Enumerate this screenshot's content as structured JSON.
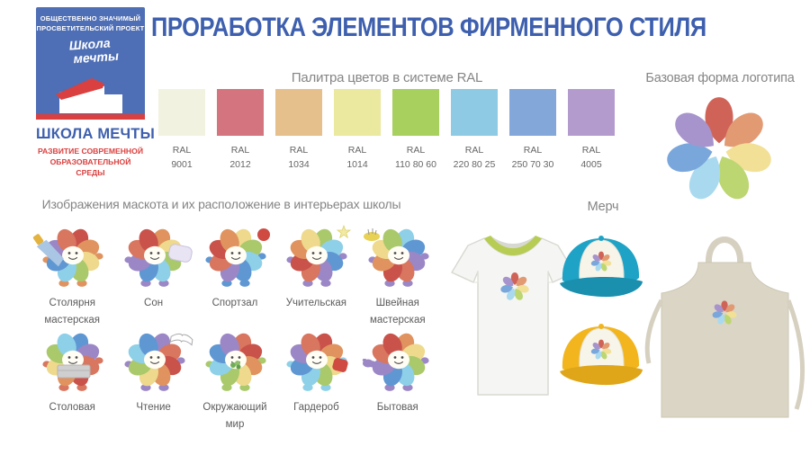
{
  "slide": {
    "title": "ПРОРАБОТКА ЭЛЕМЕНТОВ ФИРМЕННОГО СТИЛЯ",
    "accent_blue": "#3d5fae",
    "background": "#ffffff"
  },
  "logo_block": {
    "project_line1": "ОБЩЕСТВЕННО ЗНАЧИМЫЙ",
    "project_line2": "ПРОСВЕТИТЕЛЬСКИЙ ПРОЕКТ",
    "script_line1": "Школа",
    "script_line2": "мечты",
    "org_name": "ШКОЛА МЕЧТЫ",
    "tagline_line1": "РАЗВИТИЕ СОВРЕМЕННОЙ",
    "tagline_line2": "ОБРАЗОВАТЕЛЬНОЙ СРЕДЫ",
    "box_color": "#4e6eb5",
    "accent_red": "#d9403f"
  },
  "palette": {
    "heading": "Палитра цветов в системе RAL",
    "swatches": [
      {
        "name": "RAL",
        "code": "9001",
        "color": "#f2f2e0"
      },
      {
        "name": "RAL",
        "code": "2012",
        "color": "#d3747f"
      },
      {
        "name": "RAL",
        "code": "1034",
        "color": "#e5c08d"
      },
      {
        "name": "RAL",
        "code": "1014",
        "color": "#ebe8a0"
      },
      {
        "name": "RAL",
        "code": "110 80 60",
        "color": "#a8d05e"
      },
      {
        "name": "RAL",
        "code": "220 80 25",
        "color": "#8ecae3"
      },
      {
        "name": "RAL",
        "code": "250 70 30",
        "color": "#82a7d8"
      },
      {
        "name": "RAL",
        "code": "4005",
        "color": "#b49bce"
      }
    ]
  },
  "logo_shape": {
    "heading": "Базовая форма логотипа",
    "petal_colors": [
      "#d06358",
      "#e29a73",
      "#f2e096",
      "#bcd671",
      "#a9d9ef",
      "#7aa7db",
      "#a794cc"
    ]
  },
  "mascots": {
    "heading": "Изображения маскота и их расположение в интерьерах школы",
    "petal_colors": [
      "#c9524b",
      "#e0935f",
      "#eed98c",
      "#a9c96b",
      "#8ed0e8",
      "#5f97d3",
      "#9b87c6",
      "#d8765f"
    ],
    "items": [
      {
        "label_lines": [
          "Столярня",
          "мастерская"
        ],
        "prop": "saw-icon",
        "limb_color": "#e0935f"
      },
      {
        "label_lines": [
          "Сон"
        ],
        "prop": "pillow-icon",
        "limb_color": "#9b87c6"
      },
      {
        "label_lines": [
          "Спортзал"
        ],
        "prop": "ball-icon",
        "limb_color": "#5f97d3"
      },
      {
        "label_lines": [
          "Учительская"
        ],
        "prop": "star-icon",
        "limb_color": "#9b87c6"
      },
      {
        "label_lines": [
          "Швейная",
          "мастерская"
        ],
        "prop": "pincushion-icon",
        "limb_color": "#9b87c6"
      },
      {
        "label_lines": [
          "Столовая"
        ],
        "prop": "tray-icon",
        "limb_color": "#d8765f"
      },
      {
        "label_lines": [
          "Чтение"
        ],
        "prop": "book-icon",
        "limb_color": "#9b87c6"
      },
      {
        "label_lines": [
          "Окружающий",
          "мир"
        ],
        "prop": "plant-icon",
        "limb_color": "#a9c96b"
      },
      {
        "label_lines": [
          "Гардероб"
        ],
        "prop": "clothes-icon",
        "limb_color": "#8ed0e8"
      },
      {
        "label_lines": [
          "Бытовая"
        ],
        "prop": "glove-icon",
        "limb_color": "#9b87c6"
      }
    ]
  },
  "merch": {
    "heading": "Мерч",
    "items": [
      {
        "name": "t-shirt",
        "base_color": "#f5f5f3",
        "trim_color": "#b6cc53"
      },
      {
        "name": "cap",
        "base_color": "#1ea3c6",
        "panel_color": "#f7f4ea"
      },
      {
        "name": "cap",
        "base_color": "#f2b51d",
        "panel_color": "#f7f4ea"
      },
      {
        "name": "apron",
        "base_color": "#dbd5c5"
      }
    ]
  }
}
